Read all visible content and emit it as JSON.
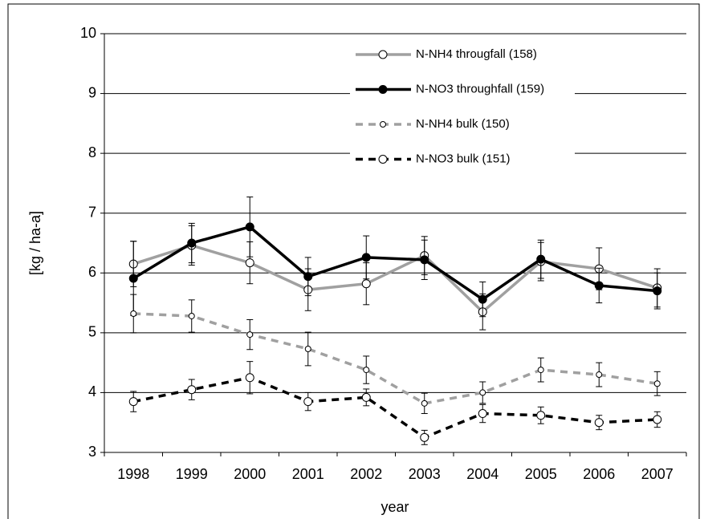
{
  "chart_data": {
    "type": "line",
    "categories": [
      "1998",
      "1999",
      "2000",
      "2001",
      "2002",
      "2003",
      "2004",
      "2005",
      "2006",
      "2007"
    ],
    "x_label": "year",
    "y_label": "[kg / ha-a]",
    "ylim": [
      3,
      10
    ],
    "yticks": [
      3,
      4,
      5,
      6,
      7,
      8,
      9,
      10
    ],
    "grid": true,
    "series": [
      {
        "name": "N-NH4 througfall (158)",
        "color": "#a0a0a0",
        "dashed": false,
        "marker_fill": "#ffffff",
        "marker_size": 5,
        "values": [
          6.15,
          6.46,
          6.17,
          5.72,
          5.82,
          6.29,
          5.35,
          6.19,
          6.07,
          5.75
        ],
        "errors": [
          0.38,
          0.33,
          0.35,
          0.35,
          0.35,
          0.32,
          0.3,
          0.32,
          0.35,
          0.32
        ]
      },
      {
        "name": "N-NO3 throughfall (159)",
        "color": "#000000",
        "dashed": false,
        "marker_fill": "#000000",
        "marker_size": 5,
        "values": [
          5.91,
          6.5,
          6.77,
          5.94,
          6.26,
          6.22,
          5.56,
          6.23,
          5.79,
          5.7
        ],
        "errors": [
          0.62,
          0.33,
          0.5,
          0.32,
          0.36,
          0.33,
          0.29,
          0.32,
          0.29,
          0.3
        ]
      },
      {
        "name": "N-NH4 bulk (150)",
        "color": "#a0a0a0",
        "dashed": true,
        "marker_fill": "#ffffff",
        "marker_size": 3.5,
        "values": [
          5.32,
          5.28,
          4.97,
          4.73,
          4.38,
          3.82,
          4.0,
          4.38,
          4.3,
          4.15
        ],
        "errors": [
          0.32,
          0.27,
          0.25,
          0.28,
          0.23,
          0.17,
          0.18,
          0.2,
          0.2,
          0.2
        ]
      },
      {
        "name": "N-NO3 bulk (151)",
        "color": "#000000",
        "dashed": true,
        "marker_fill": "#ffffff",
        "marker_size": 5,
        "values": [
          3.85,
          4.05,
          4.25,
          3.85,
          3.92,
          3.25,
          3.65,
          3.62,
          3.5,
          3.55
        ],
        "errors": [
          0.17,
          0.17,
          0.27,
          0.15,
          0.14,
          0.12,
          0.15,
          0.14,
          0.12,
          0.13
        ]
      }
    ]
  }
}
